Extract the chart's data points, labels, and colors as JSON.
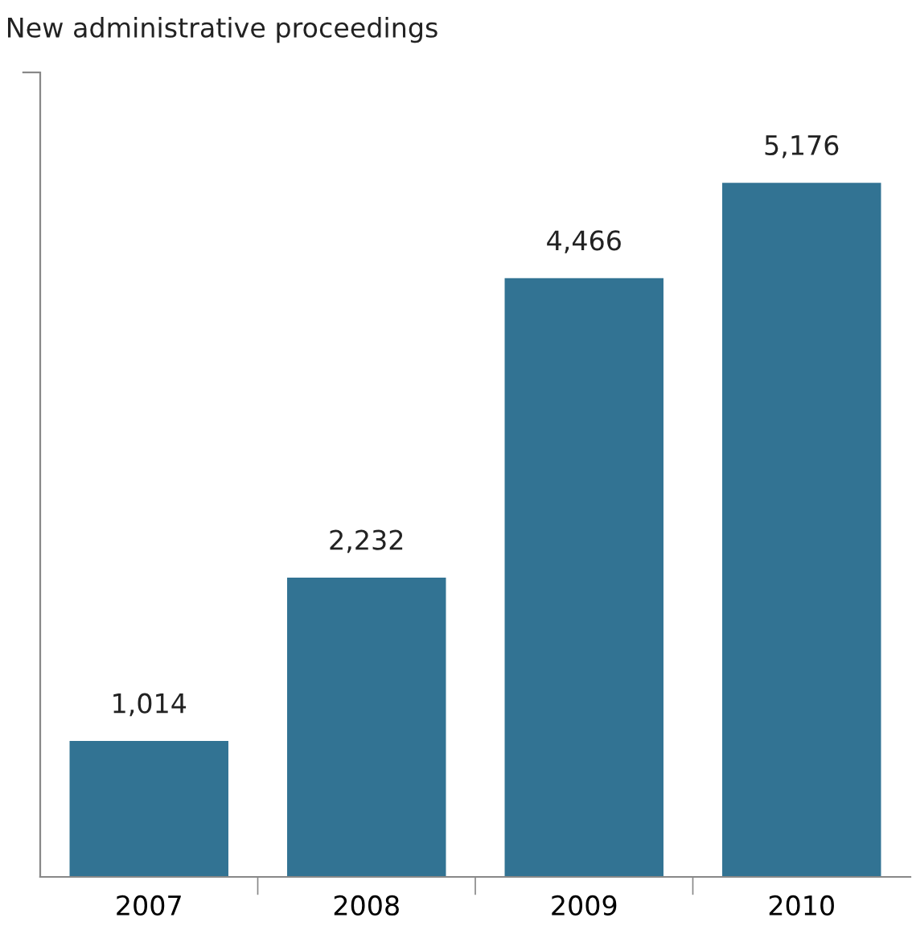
{
  "chart_data": {
    "type": "bar",
    "title": "New administrative proceedings",
    "categories": [
      "2007",
      "2008",
      "2009",
      "2010"
    ],
    "values": [
      1014,
      2232,
      4466,
      5176
    ],
    "value_labels": [
      "1,014",
      "2,232",
      "4,466",
      "5,176"
    ],
    "color": "#327393",
    "ylim": [
      0,
      6000
    ],
    "yticks": [
      {
        "value": 6000,
        "label": null
      }
    ],
    "grid": false,
    "legend": false
  }
}
